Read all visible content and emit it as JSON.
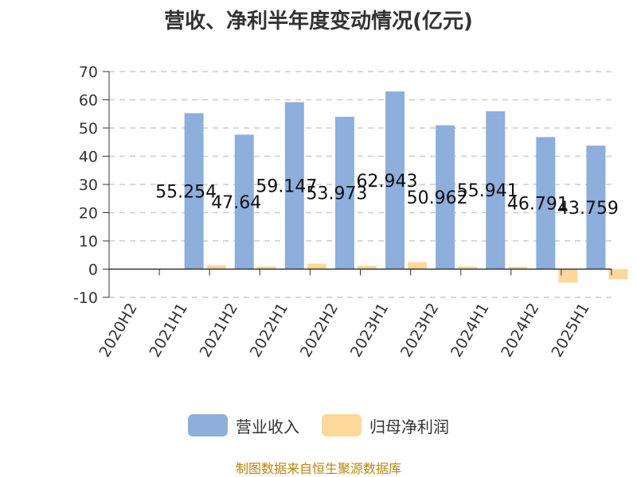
{
  "source_note": "制图数据来自恒生聚源数据库",
  "chart_data": {
    "type": "bar",
    "title": "营收、净利半年度变动情况(亿元)",
    "categories": [
      "2020H2",
      "2021H1",
      "2021H2",
      "2022H1",
      "2022H2",
      "2023H1",
      "2023H2",
      "2024H1",
      "2024H2",
      "2025H1"
    ],
    "series": [
      {
        "name": "营业收入",
        "color": "#8eaedb",
        "values": [
          null,
          55.254,
          47.64,
          59.147,
          53.973,
          62.943,
          50.962,
          55.941,
          46.791,
          43.759
        ],
        "labels": [
          "",
          "55.254",
          "47.64",
          "59.147",
          "53.973",
          "62.943",
          "50.962",
          "55.941",
          "46.791",
          "43.759"
        ]
      },
      {
        "name": "归母净利润",
        "color": "#fdd898",
        "values": [
          null,
          1.4,
          0.9,
          1.9,
          1.2,
          2.5,
          0.9,
          0.8,
          -4.8,
          -3.6
        ]
      }
    ],
    "yticks": [
      "70",
      "60",
      "50",
      "40",
      "30",
      "20",
      "10",
      "0",
      "-10"
    ],
    "ylim": [
      -10,
      70
    ],
    "grid": true,
    "legend_position": "bottom"
  }
}
